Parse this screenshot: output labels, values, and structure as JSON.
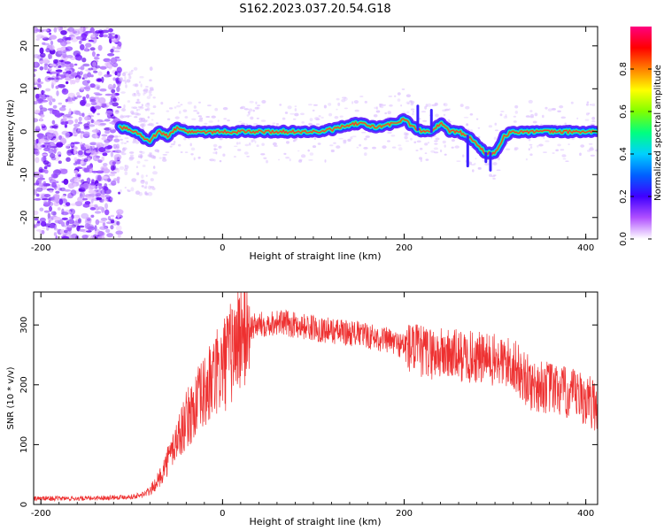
{
  "title": "S162.2023.037.20.54.G18",
  "chart_data": [
    {
      "type": "heatmap",
      "title": "S162.2023.037.20.54.G18",
      "xlabel": "Height of straight line (km)",
      "ylabel": "Frequency (Hz)",
      "xlim": [
        -208,
        413
      ],
      "ylim": [
        -25,
        24.5
      ],
      "x_ticks": [
        -200,
        0,
        200,
        400
      ],
      "x_tick_labels": [
        "-200",
        "0",
        "200",
        "400"
      ],
      "y_ticks": [
        20,
        10,
        0,
        -10,
        -20
      ],
      "y_tick_labels": [
        "20",
        "10",
        "0",
        "-10",
        "-20"
      ],
      "colorbar": {
        "label": "Normalized spectral amplitude",
        "range": [
          0,
          1
        ],
        "ticks": [
          0.0,
          0.2,
          0.4,
          0.6,
          0.8
        ],
        "tick_labels": [
          "0.0",
          "0.2",
          "0.4",
          "0.6",
          "0.8"
        ],
        "colormap": [
          "#ffffff",
          "#b050ff",
          "#4000ff",
          "#0060ff",
          "#00d0ff",
          "#00ff80",
          "#80ff00",
          "#ffff00",
          "#ff8000",
          "#ff0000",
          "#ff0080"
        ]
      },
      "noise_region_x": [
        -208,
        -113
      ],
      "ridge": [
        {
          "x": -113,
          "y": 1
        },
        {
          "x": -100,
          "y": 0.5
        },
        {
          "x": -90,
          "y": -1
        },
        {
          "x": -80,
          "y": -2
        },
        {
          "x": -70,
          "y": 0
        },
        {
          "x": -60,
          "y": -1
        },
        {
          "x": -50,
          "y": 1
        },
        {
          "x": -40,
          "y": 0
        },
        {
          "x": -20,
          "y": 0
        },
        {
          "x": 0,
          "y": 0
        },
        {
          "x": 40,
          "y": 0
        },
        {
          "x": 80,
          "y": 0
        },
        {
          "x": 110,
          "y": 0
        },
        {
          "x": 130,
          "y": 1
        },
        {
          "x": 150,
          "y": 2
        },
        {
          "x": 170,
          "y": 1
        },
        {
          "x": 190,
          "y": 2
        },
        {
          "x": 200,
          "y": 3
        },
        {
          "x": 210,
          "y": 1
        },
        {
          "x": 220,
          "y": 0
        },
        {
          "x": 230,
          "y": 0
        },
        {
          "x": 240,
          "y": 2
        },
        {
          "x": 250,
          "y": 0
        },
        {
          "x": 260,
          "y": 0
        },
        {
          "x": 270,
          "y": -1
        },
        {
          "x": 280,
          "y": -3
        },
        {
          "x": 290,
          "y": -5
        },
        {
          "x": 300,
          "y": -5
        },
        {
          "x": 310,
          "y": -1
        },
        {
          "x": 320,
          "y": 0
        },
        {
          "x": 340,
          "y": 0
        },
        {
          "x": 360,
          "y": 0
        },
        {
          "x": 380,
          "y": 0
        },
        {
          "x": 400,
          "y": 0
        },
        {
          "x": 413,
          "y": 0
        }
      ]
    },
    {
      "type": "line",
      "xlabel": "Height of straight line (km)",
      "ylabel": "SNR (10 * v/v)",
      "xlim": [
        -208,
        413
      ],
      "ylim": [
        0,
        355
      ],
      "x_ticks": [
        -200,
        0,
        200,
        400
      ],
      "x_tick_labels": [
        "-200",
        "0",
        "200",
        "400"
      ],
      "y_ticks": [
        0,
        100,
        200,
        300
      ],
      "y_tick_labels": [
        "0",
        "100",
        "200",
        "300"
      ],
      "series": [
        {
          "color": "#ee3030",
          "x": [
            -208,
            -180,
            -150,
            -120,
            -100,
            -90,
            -80,
            -70,
            -60,
            -50,
            -40,
            -30,
            -20,
            -10,
            0,
            10,
            20,
            30,
            40,
            60,
            80,
            100,
            120,
            150,
            180,
            200,
            220,
            250,
            280,
            300,
            320,
            330,
            340,
            360,
            380,
            400,
            413
          ],
          "y": [
            10,
            10,
            10,
            12,
            13,
            15,
            22,
            42,
            75,
            110,
            140,
            165,
            185,
            210,
            230,
            255,
            285,
            295,
            300,
            305,
            300,
            295,
            290,
            285,
            275,
            265,
            255,
            250,
            245,
            240,
            235,
            215,
            200,
            195,
            185,
            175,
            165
          ]
        }
      ]
    }
  ]
}
